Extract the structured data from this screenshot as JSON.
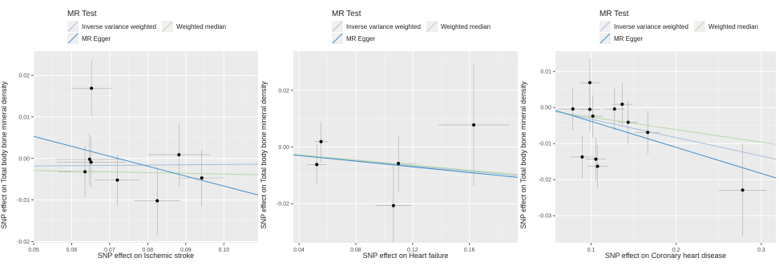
{
  "legend": {
    "title": "MR Test",
    "entries": [
      {
        "label": "Inverse variance weighted",
        "color": "#a6bddb"
      },
      {
        "label": "Weighted median",
        "color": "#b8d9a6"
      },
      {
        "label": "MR Egger",
        "color": "#3f8fcf"
      }
    ]
  },
  "chart_data": [
    {
      "type": "scatter",
      "title": "",
      "xlabel": "SNP effect on Ischemic stroke",
      "ylabel": "SNP effect on Total body bone mineral density",
      "xlim": [
        0.05,
        0.109
      ],
      "ylim": [
        -0.0203,
        0.0258
      ],
      "xticks": [
        0.05,
        0.06,
        0.07,
        0.08,
        0.09,
        0.1
      ],
      "xtick_labels": [
        "0.05",
        "0.06",
        "0.07",
        "0.08",
        "0.09",
        "0.10"
      ],
      "yticks": [
        -0.02,
        -0.01,
        0.0,
        0.01,
        0.02
      ],
      "ytick_labels": [
        "-0.02",
        "-0.01",
        "0.00",
        "0.01",
        "0.02"
      ],
      "points": [
        {
          "x": 0.0652,
          "y": 0.0169,
          "xse": 0.0052,
          "yse": 0.0068
        },
        {
          "x": 0.0635,
          "y": -0.0032,
          "xse": 0.007,
          "yse": 0.0062
        },
        {
          "x": 0.0647,
          "y": -0.0002,
          "xse": 0.009,
          "yse": 0.0062
        },
        {
          "x": 0.0651,
          "y": -0.0009,
          "xse": 0.009,
          "yse": 0.0062
        },
        {
          "x": 0.072,
          "y": -0.0052,
          "xse": 0.006,
          "yse": 0.0062
        },
        {
          "x": 0.0825,
          "y": -0.0102,
          "xse": 0.006,
          "yse": 0.0082
        },
        {
          "x": 0.0882,
          "y": 0.0009,
          "xse": 0.0082,
          "yse": 0.0076
        },
        {
          "x": 0.0942,
          "y": -0.0047,
          "xse": 0.006,
          "yse": 0.0068
        }
      ],
      "lines": [
        {
          "name": "Inverse variance weighted",
          "color": "#a6bddb",
          "x": [
            0.05,
            0.109
          ],
          "y": [
            -0.0018,
            -0.0014
          ]
        },
        {
          "name": "Weighted median",
          "color": "#b8d9a6",
          "x": [
            0.05,
            0.109
          ],
          "y": [
            -0.0029,
            -0.0039
          ]
        },
        {
          "name": "MR Egger",
          "color": "#3f8fcf",
          "x": [
            0.05,
            0.109
          ],
          "y": [
            0.0053,
            -0.0088
          ]
        }
      ]
    },
    {
      "type": "scatter",
      "title": "",
      "xlabel": "SNP effect on Heart failure",
      "ylabel": "SNP effect on Total body bone mineral density",
      "xlim": [
        0.036,
        0.194
      ],
      "ylim": [
        -0.0338,
        0.0338
      ],
      "xticks": [
        0.04,
        0.08,
        0.12,
        0.16
      ],
      "xtick_labels": [
        "0.04",
        "0.08",
        "0.12",
        "0.16"
      ],
      "yticks": [
        -0.02,
        0.0,
        0.02
      ],
      "ytick_labels": [
        "-0.02",
        "0.00",
        "0.02"
      ],
      "points": [
        {
          "x": 0.0555,
          "y": 0.0019,
          "xse": 0.005,
          "yse": 0.0072
        },
        {
          "x": 0.0525,
          "y": -0.0062,
          "xse": 0.007,
          "yse": 0.0072
        },
        {
          "x": 0.11,
          "y": -0.0058,
          "xse": 0.0128,
          "yse": 0.0098
        },
        {
          "x": 0.1065,
          "y": -0.0207,
          "xse": 0.0128,
          "yse": 0.0148
        },
        {
          "x": 0.163,
          "y": 0.0078,
          "xse": 0.0248,
          "yse": 0.0216
        }
      ],
      "lines": [
        {
          "name": "Inverse variance weighted",
          "color": "#a6bddb",
          "x": [
            0.036,
            0.194
          ],
          "y": [
            -0.0028,
            -0.0101
          ]
        },
        {
          "name": "Weighted median",
          "color": "#b8d9a6",
          "x": [
            0.036,
            0.194
          ],
          "y": [
            -0.0026,
            -0.0097
          ]
        },
        {
          "name": "MR Egger",
          "color": "#3f8fcf",
          "x": [
            0.036,
            0.194
          ],
          "y": [
            -0.0028,
            -0.0107
          ]
        }
      ]
    },
    {
      "type": "scatter",
      "title": "",
      "xlabel": "SNP effect on Coronary heart disease",
      "ylabel": "SNP effect on Total body bone mineral density",
      "xlim": [
        0.058,
        0.317
      ],
      "ylim": [
        -0.0375,
        0.0156
      ],
      "xticks": [
        0.1,
        0.2,
        0.3
      ],
      "xtick_labels": [
        "0.1",
        "0.2",
        "0.3"
      ],
      "yticks": [
        -0.03,
        -0.02,
        -0.01,
        0.0,
        0.01
      ],
      "ytick_labels": [
        "-0.03",
        "-0.02",
        "-0.01",
        "0.00",
        "0.01"
      ],
      "points": [
        {
          "x": 0.0785,
          "y": -0.0004,
          "xse": 0.018,
          "yse": 0.006
        },
        {
          "x": 0.0985,
          "y": 0.0069,
          "xse": 0.012,
          "yse": 0.0068
        },
        {
          "x": 0.0985,
          "y": -0.0005,
          "xse": 0.012,
          "yse": 0.006
        },
        {
          "x": 0.102,
          "y": -0.0024,
          "xse": 0.012,
          "yse": 0.0058
        },
        {
          "x": 0.1275,
          "y": -0.0004,
          "xse": 0.012,
          "yse": 0.006
        },
        {
          "x": 0.1365,
          "y": 0.0009,
          "xse": 0.012,
          "yse": 0.006
        },
        {
          "x": 0.1435,
          "y": -0.0041,
          "xse": 0.012,
          "yse": 0.006
        },
        {
          "x": 0.1665,
          "y": -0.0069,
          "xse": 0.014,
          "yse": 0.006
        },
        {
          "x": 0.0895,
          "y": -0.0137,
          "xse": 0.014,
          "yse": 0.006
        },
        {
          "x": 0.1055,
          "y": -0.0143,
          "xse": 0.012,
          "yse": 0.006
        },
        {
          "x": 0.1075,
          "y": -0.0163,
          "xse": 0.012,
          "yse": 0.006
        },
        {
          "x": 0.278,
          "y": -0.0229,
          "xse": 0.028,
          "yse": 0.0128
        }
      ],
      "lines": [
        {
          "name": "Inverse variance weighted",
          "color": "#a6bddb",
          "x": [
            0.058,
            0.317
          ],
          "y": [
            -0.0011,
            -0.0143
          ]
        },
        {
          "name": "Weighted median",
          "color": "#b8d9a6",
          "x": [
            0.058,
            0.317
          ],
          "y": [
            -0.0012,
            -0.0102
          ]
        },
        {
          "name": "MR Egger",
          "color": "#3f8fcf",
          "x": [
            0.058,
            0.317
          ],
          "y": [
            -0.0008,
            -0.0195
          ]
        }
      ]
    }
  ]
}
